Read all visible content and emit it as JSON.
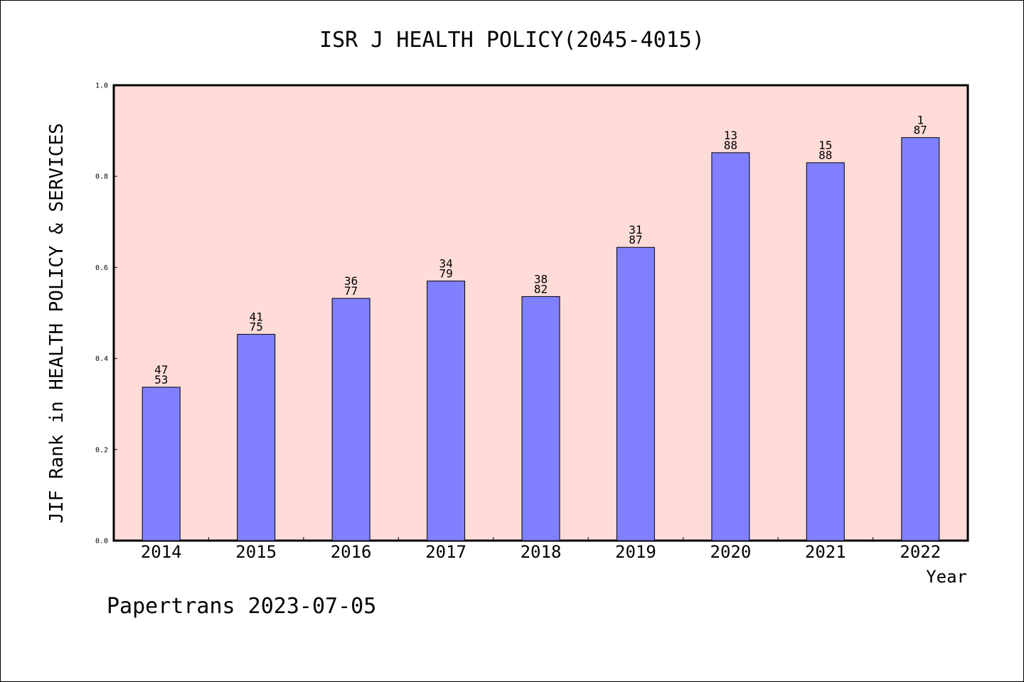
{
  "chart_data": {
    "type": "bar",
    "title": "ISR J HEALTH POLICY(2045-4015)",
    "xlabel": "Year",
    "ylabel": "JIF Rank in HEALTH POLICY & SERVICES",
    "categories": [
      "2014",
      "2015",
      "2016",
      "2017",
      "2018",
      "2019",
      "2020",
      "2021",
      "2022"
    ],
    "values": [
      0.337,
      0.453,
      0.532,
      0.57,
      0.536,
      0.644,
      0.852,
      0.83,
      0.885
    ],
    "bar_labels": [
      {
        "rank": "47",
        "total": "53"
      },
      {
        "rank": "41",
        "total": "75"
      },
      {
        "rank": "36",
        "total": "77"
      },
      {
        "rank": "34",
        "total": "79"
      },
      {
        "rank": "38",
        "total": "82"
      },
      {
        "rank": "31",
        "total": "87"
      },
      {
        "rank": "13",
        "total": "88"
      },
      {
        "rank": "15",
        "total": "88"
      },
      {
        "rank": "1",
        "total": "87"
      }
    ],
    "ylim": [
      0,
      1.0
    ],
    "yticks": [
      "0.0",
      "0.2",
      "0.4",
      "0.6",
      "0.8",
      "1.0"
    ],
    "grid": false,
    "colors": {
      "bar": "#8080ff",
      "plot_background": "#ffdcd8",
      "axis": "#000000"
    }
  },
  "footer": {
    "watermark": "Papertrans 2023-07-05"
  }
}
